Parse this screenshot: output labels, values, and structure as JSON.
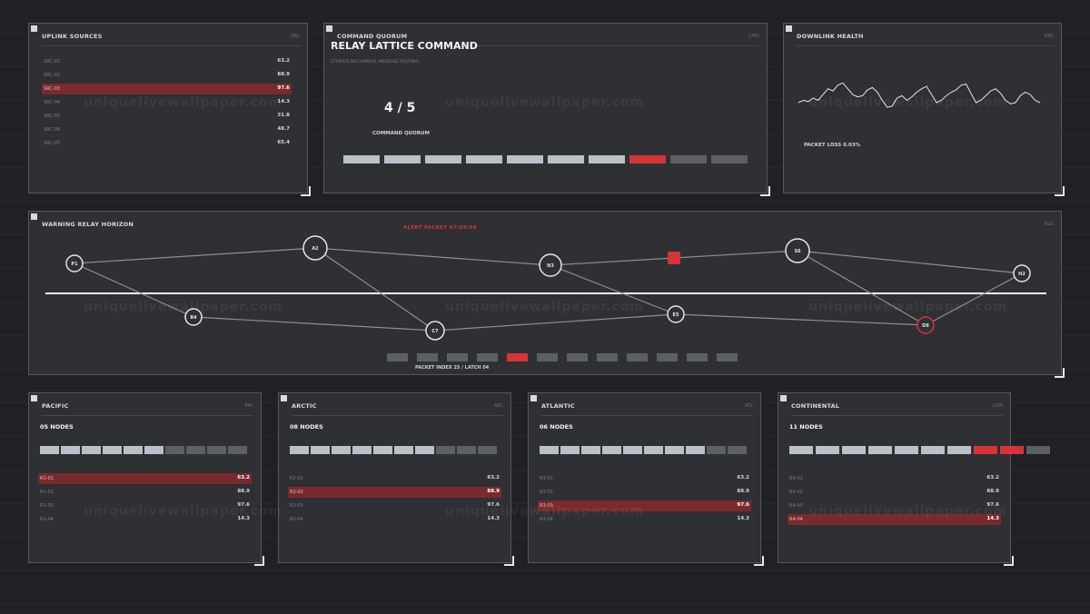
{
  "watermark": "uniquelivewallpaper.com",
  "colors": {
    "accent": "#d63438",
    "highlight": "#7a2a2c",
    "seg_on": "#b9c0c7",
    "seg_off": "#5d6063"
  },
  "uplink": {
    "title": "UPLINK SOURCES",
    "code": "SRC",
    "rows": [
      {
        "label": "SRC-01",
        "value": "63.2"
      },
      {
        "label": "SRC-02",
        "value": "88.9"
      },
      {
        "label": "SRC-03",
        "value": "97.6"
      },
      {
        "label": "SRC-04",
        "value": "14.3"
      },
      {
        "label": "SRC-05",
        "value": "31.8"
      },
      {
        "label": "SRC-06",
        "value": "48.7"
      },
      {
        "label": "SRC-07",
        "value": "65.4"
      }
    ]
  },
  "quorum": {
    "title": "COMMAND QUORUM",
    "code": "CMD",
    "heading": "RELAY LATTICE COMMAND",
    "subheading": "STEPPED MECHANICAL MESSAGE ROUTING",
    "value": "4 / 5",
    "caption": "COMMAND QUORUM",
    "segments": [
      "on",
      "on",
      "on",
      "on",
      "on",
      "on",
      "on",
      "alert",
      "off",
      "off"
    ]
  },
  "downlink": {
    "title": "DOWNLINK HEALTH",
    "code": "DNL",
    "packet_loss": "PACKET LOSS 0.03%",
    "wave": [
      97,
      99,
      98,
      101,
      99,
      104,
      109,
      107,
      112,
      114,
      109,
      104,
      102,
      103,
      108,
      110,
      106,
      99,
      93,
      94,
      101,
      103,
      99,
      102,
      106,
      109,
      111,
      104,
      97,
      99,
      103,
      106,
      108,
      112,
      113,
      105,
      97,
      99,
      103,
      107,
      109,
      105,
      99,
      96,
      97,
      103,
      106,
      104,
      99,
      97
    ]
  },
  "horizon": {
    "title": "WARNING RELAY HORIZON",
    "code": "RLG",
    "alert": "ALERT PACKET A7:E9:04",
    "caption": "PACKET INDEX 25 / LATCH 04",
    "nodes": [
      {
        "label": "P1"
      },
      {
        "label": "B4"
      },
      {
        "label": "A2"
      },
      {
        "label": "C7"
      },
      {
        "label": "N3"
      },
      {
        "label": "E5"
      },
      {
        "label": ""
      },
      {
        "label": "S6"
      },
      {
        "label": "D8"
      },
      {
        "label": "H2"
      }
    ],
    "segments": [
      "off",
      "off",
      "off",
      "off",
      "alert",
      "off",
      "off",
      "off",
      "off",
      "off",
      "off",
      "off"
    ]
  },
  "regions": [
    {
      "title": "PACIFIC",
      "code": "PAC",
      "nodes": "05 NODES",
      "segments": [
        "on",
        "on",
        "on",
        "on",
        "on",
        "on",
        "off",
        "off",
        "off",
        "off"
      ],
      "rows": [
        {
          "label": "R1-01",
          "value": "63.2"
        },
        {
          "label": "R1-03",
          "value": "88.9"
        },
        {
          "label": "R1-03",
          "value": "97.6"
        },
        {
          "label": "R1-04",
          "value": "14.3"
        }
      ],
      "highlight": 0
    },
    {
      "title": "ARCTIC",
      "code": "ARC",
      "nodes": "08 NODES",
      "segments": [
        "on",
        "on",
        "on",
        "on",
        "on",
        "on",
        "on",
        "off",
        "off",
        "off"
      ],
      "rows": [
        {
          "label": "R2-01",
          "value": "63.2"
        },
        {
          "label": "R2-02",
          "value": "88.9"
        },
        {
          "label": "R2-03",
          "value": "97.6"
        },
        {
          "label": "R2-04",
          "value": "14.3"
        }
      ],
      "highlight": 1
    },
    {
      "title": "ATLANTIC",
      "code": "ATL",
      "nodes": "06 NODES",
      "segments": [
        "on",
        "on",
        "on",
        "on",
        "on",
        "on",
        "on",
        "on",
        "off",
        "off"
      ],
      "rows": [
        {
          "label": "R3-01",
          "value": "63.2"
        },
        {
          "label": "R3-02",
          "value": "88.9"
        },
        {
          "label": "R3-03",
          "value": "97.6"
        },
        {
          "label": "R3-04",
          "value": "14.3"
        }
      ],
      "highlight": 2
    },
    {
      "title": "CONTINENTAL",
      "code": "CON",
      "nodes": "11 NODES",
      "segments": [
        "on",
        "on",
        "on",
        "on",
        "on",
        "on",
        "on",
        "alert",
        "alert",
        "off"
      ],
      "rows": [
        {
          "label": "R4-01",
          "value": "63.2"
        },
        {
          "label": "R4-02",
          "value": "88.9"
        },
        {
          "label": "R4-03",
          "value": "97.6"
        },
        {
          "label": "R4-04",
          "value": "14.3"
        }
      ],
      "highlight": 3
    }
  ]
}
